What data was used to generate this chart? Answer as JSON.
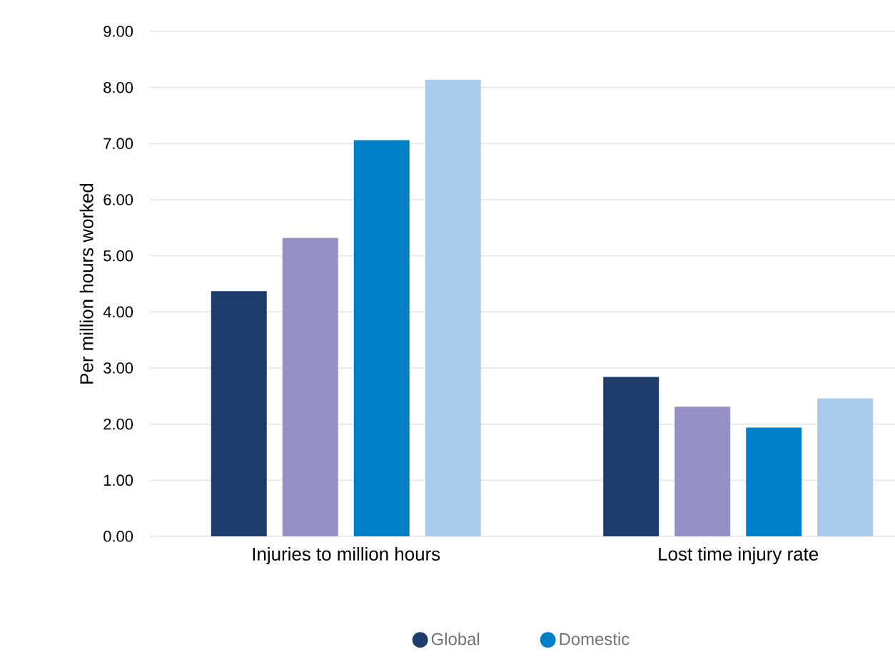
{
  "chart_data": {
    "type": "bar",
    "ylabel": "Per million hours worked",
    "categories": [
      "Injuries to million hours",
      "Lost time injury rate"
    ],
    "series": [
      {
        "name": "Global",
        "color": "#1c3c6c",
        "values": [
          4.37,
          2.84
        ]
      },
      {
        "color": "#9591c6",
        "values": [
          5.32,
          2.31
        ]
      },
      {
        "name": "Domestic",
        "color": "#0080c8",
        "values": [
          7.06,
          1.94
        ]
      },
      {
        "color": "#abcbea",
        "values": [
          8.14,
          2.46
        ]
      }
    ],
    "ylim": [
      0,
      9
    ],
    "yticks": [
      {
        "value": 0,
        "label": "0.00"
      },
      {
        "value": 1,
        "label": "1.00"
      },
      {
        "value": 2,
        "label": "2.00"
      },
      {
        "value": 3,
        "label": "3.00"
      },
      {
        "value": 4,
        "label": "4.00"
      },
      {
        "value": 5,
        "label": "5.00"
      },
      {
        "value": 6,
        "label": "6.00"
      },
      {
        "value": 7,
        "label": "7.00"
      },
      {
        "value": 8,
        "label": "8.00"
      },
      {
        "value": 9,
        "label": "9.00"
      }
    ],
    "grid": "y",
    "legend": "bottom",
    "marker": "circle"
  }
}
